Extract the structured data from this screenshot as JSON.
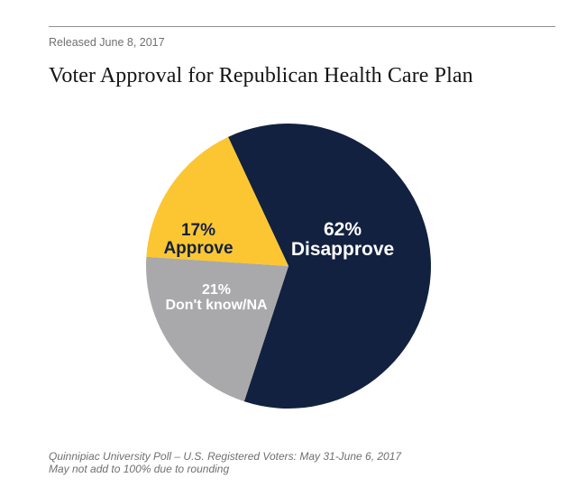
{
  "release_note": "Released June 8, 2017",
  "title": "Voter Approval for Republican Health Care Plan",
  "chart_data": {
    "type": "pie",
    "title": "Voter Approval for Republican Health Care Plan",
    "slices": [
      {
        "label": "Disapprove",
        "value": 62,
        "percent_label": "62%",
        "color": "#12213f",
        "text_color": "#ffffff"
      },
      {
        "label": "Don't know/NA",
        "value": 21,
        "percent_label": "21%",
        "color": "#a9a9ab",
        "text_color": "#ffffff"
      },
      {
        "label": "Approve",
        "value": 17,
        "percent_label": "17%",
        "color": "#fbc632",
        "text_color": "#12213f"
      }
    ]
  },
  "footer": {
    "source": "Quinnipiac University Poll – U.S. Registered Voters: May 31-June 6, 2017",
    "note": "May not add to 100% due to rounding"
  }
}
